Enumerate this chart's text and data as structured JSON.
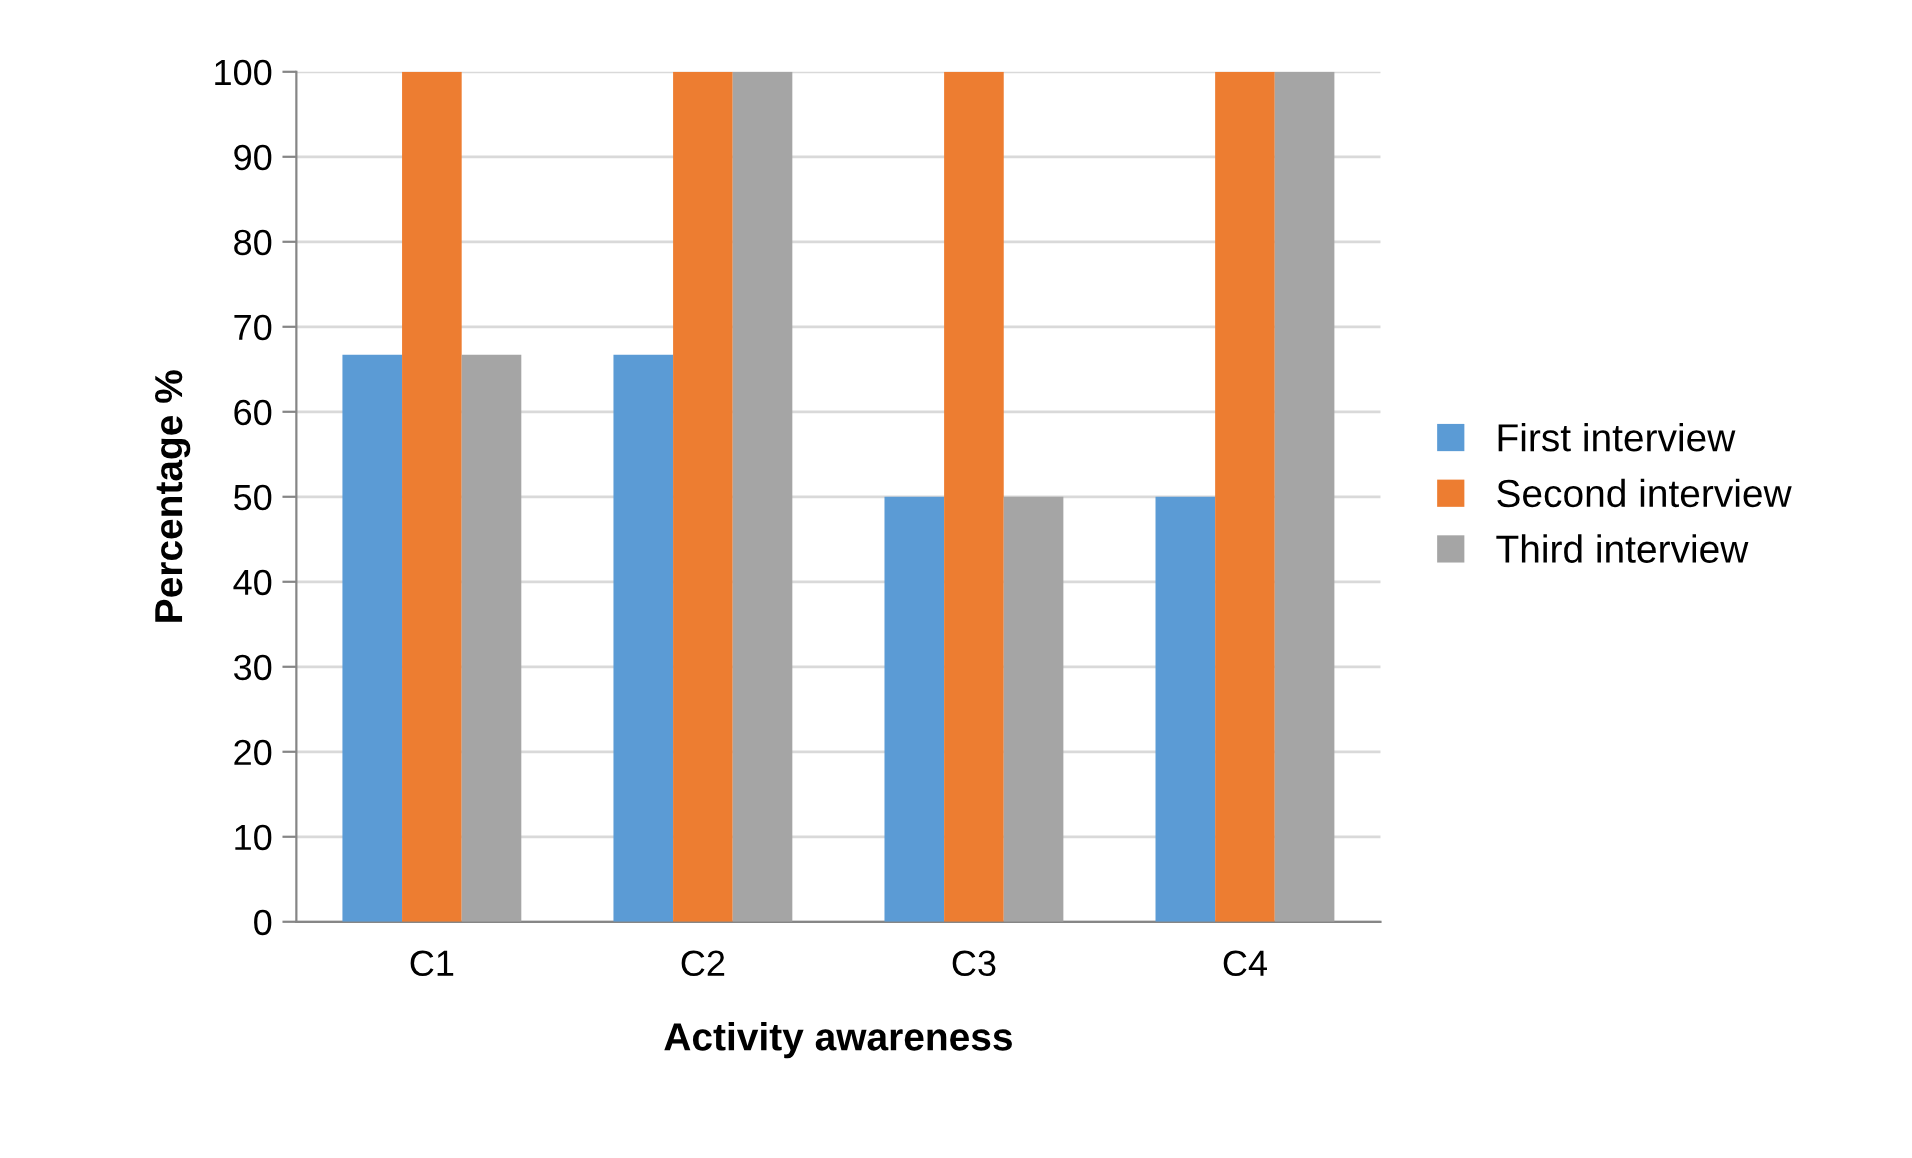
{
  "chart_data": {
    "type": "bar",
    "xlabel": "Activity awareness",
    "ylabel": "Percentage %",
    "categories": [
      "C1",
      "C2",
      "C3",
      "C4"
    ],
    "series": [
      {
        "name": "First interview",
        "color": "#5b9bd5",
        "values": [
          66.7,
          66.7,
          50,
          50
        ]
      },
      {
        "name": "Second interview",
        "color": "#ed7d31",
        "values": [
          100,
          100,
          100,
          100
        ]
      },
      {
        "name": "Third interview",
        "color": "#a5a5a5",
        "values": [
          66.7,
          100,
          50,
          100
        ]
      }
    ],
    "ylim": [
      0,
      100
    ],
    "yticks": [
      0,
      10,
      20,
      30,
      40,
      50,
      60,
      70,
      80,
      90,
      100
    ],
    "grid": "y",
    "legend": "right"
  }
}
